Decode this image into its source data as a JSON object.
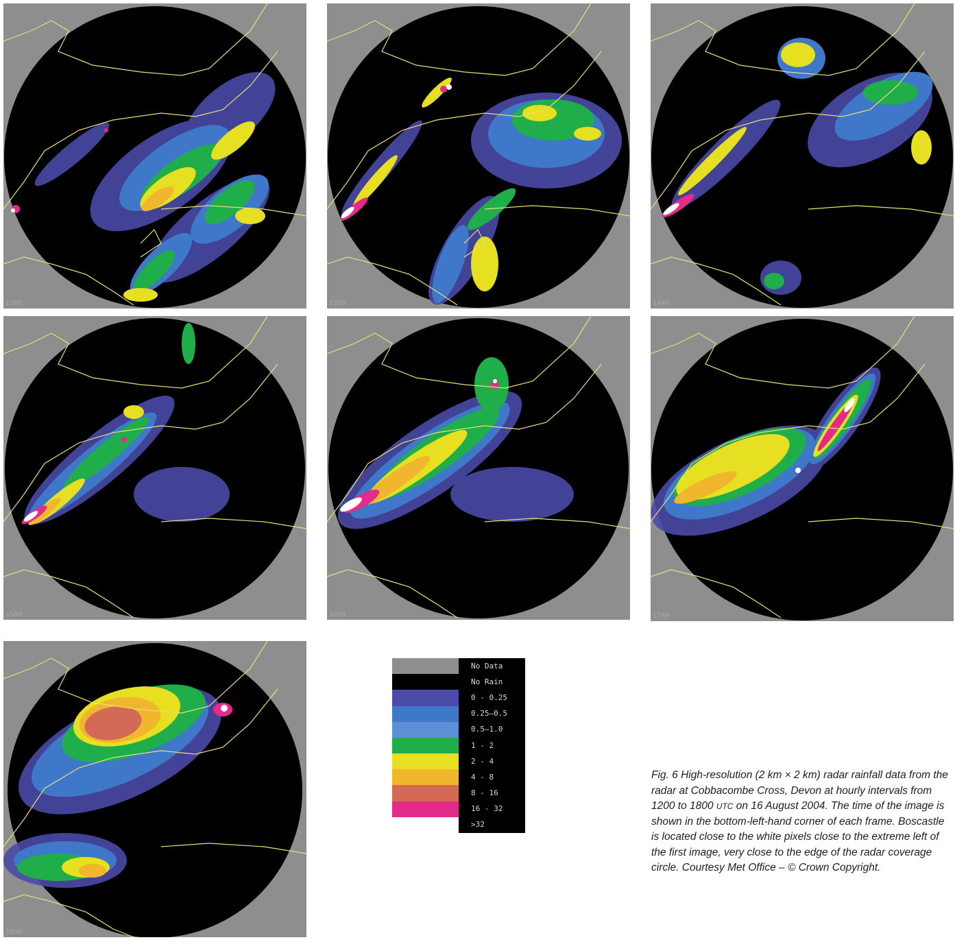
{
  "frames": [
    {
      "id": "f1",
      "time": "1200"
    },
    {
      "id": "f2",
      "time": "1300"
    },
    {
      "id": "f3",
      "time": "1400"
    },
    {
      "id": "f4",
      "time": "1500"
    },
    {
      "id": "f5",
      "time": "1600"
    },
    {
      "id": "f6",
      "time": "1700"
    },
    {
      "id": "f7",
      "time": "1800"
    }
  ],
  "colors": {
    "no_data": "#8e8e8e",
    "no_rain": "#000000",
    "c0": "#4a4aa8",
    "c1": "#3f78c8",
    "c2": "#5b90d4",
    "c3": "#1fae4a",
    "c4": "#e6df22",
    "c5": "#f0b62e",
    "c6": "#d46a55",
    "c7": "#e42a8a",
    "c8": "#ffffff",
    "coast": "#e8e07a"
  },
  "legend": [
    {
      "label": "No Data",
      "color": "#8e8e8e"
    },
    {
      "label": "No Rain",
      "color": "#000000"
    },
    {
      "label": "0 - 0.25",
      "color": "#4a4aa8"
    },
    {
      "label": "0.25–0.5",
      "color": "#3f78c8"
    },
    {
      "label": "0.5–1.0",
      "color": "#5b90d4"
    },
    {
      "label": "1 - 2",
      "color": "#1fae4a"
    },
    {
      "label": "2 - 4",
      "color": "#e6df22"
    },
    {
      "label": "4 - 8",
      "color": "#f0b62e"
    },
    {
      "label": "8 - 16",
      "color": "#d46a55"
    },
    {
      "label": "16 - 32",
      "color": "#e42a8a"
    },
    {
      "label": ">32",
      "color": "#ffffff"
    }
  ],
  "caption": {
    "part1": "Fig. 6 High-resolution (2 km × 2 km) radar rainfall data from the radar at Cobbacombe Cross, Devon at hourly intervals from 1200 to 1800 ",
    "utc": "UTC",
    "part2": " on 16 August 2004. The time of the image is shown in the bottom-left-hand corner of each frame. Boscastle is located close to the white pixels close to the extreme left of the first image, very close to the edge of the radar coverage circle. Courtesy Met Office – © Crown Copyright."
  }
}
